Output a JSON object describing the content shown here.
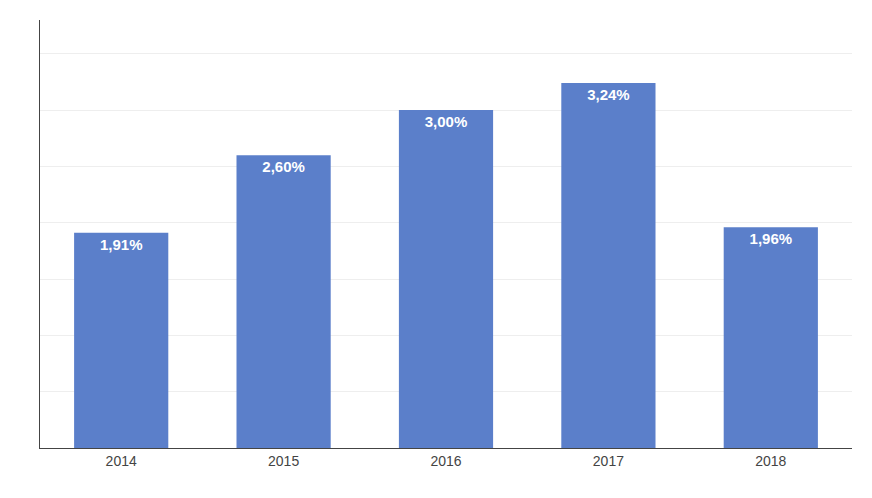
{
  "chart_data": {
    "type": "bar",
    "categories": [
      "2014",
      "2015",
      "2016",
      "2017",
      "2018"
    ],
    "values": [
      1.91,
      2.6,
      3.0,
      3.24,
      1.96
    ],
    "value_labels": [
      "1,91%",
      "2,60%",
      "3,00%",
      "3,24%",
      "1,96%"
    ],
    "data_labels": true,
    "color": "#5b7fca",
    "ylim": [
      0,
      3.8
    ],
    "yticks": [
      0.5,
      1.0,
      1.5,
      2.0,
      2.5,
      3.0,
      3.5
    ],
    "grid": true,
    "tick_labels": "x"
  }
}
